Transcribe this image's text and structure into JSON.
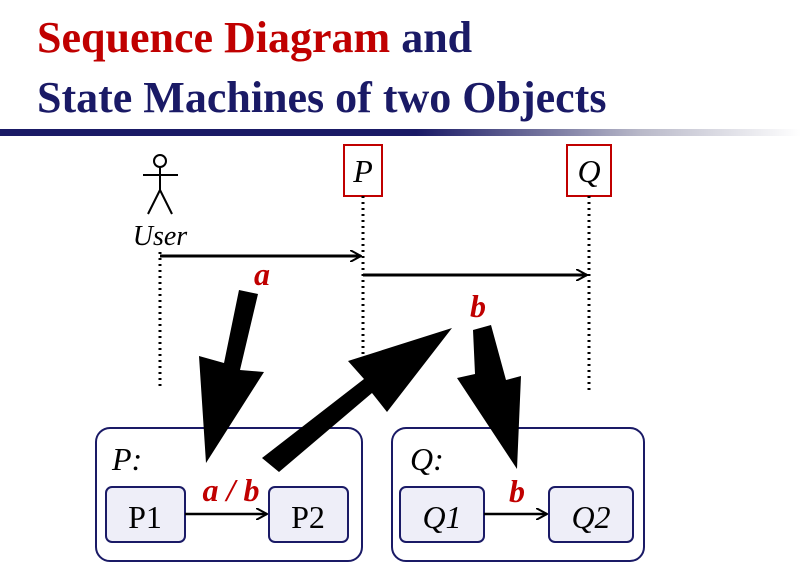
{
  "title": {
    "line1_red": "Sequence Diagram",
    "line1_navy": " and",
    "line2": "State Machines of two Objects"
  },
  "sequence": {
    "actor_label": "User",
    "lifeline_p": "P",
    "lifeline_q": "Q",
    "message_a": "a",
    "message_b": "b"
  },
  "state_machines": {
    "p": {
      "name": "P:",
      "from": "P1",
      "to": "P2",
      "transition": "a / b"
    },
    "q": {
      "name": "Q:",
      "from": "Q1",
      "to": "Q2",
      "transition": "b"
    }
  },
  "colors": {
    "accent_red": "#c00000",
    "navy": "#1a1a66",
    "box_fill": "#eeeef8"
  }
}
